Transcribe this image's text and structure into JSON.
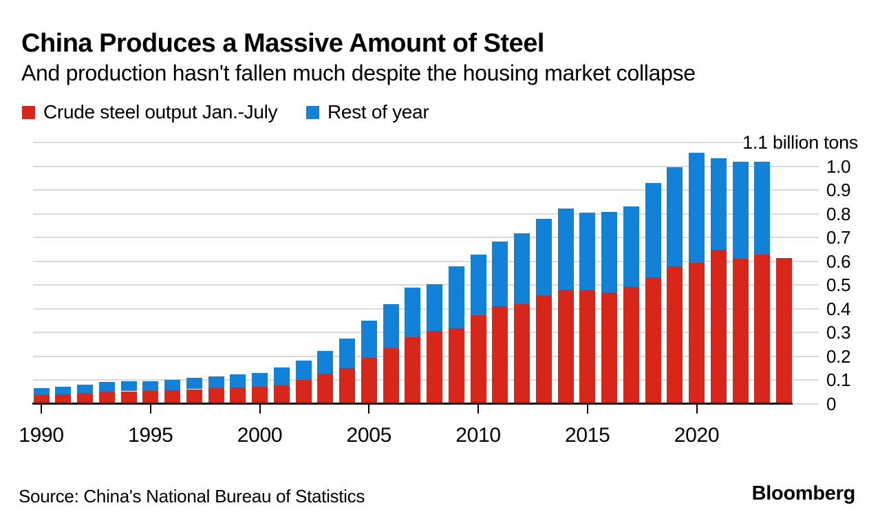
{
  "header": {
    "title": "China Produces a Massive Amount of Steel",
    "subtitle": "And production hasn't fallen much despite the housing market collapse"
  },
  "legend": {
    "items": [
      {
        "label": "Crude steel output Jan.-July",
        "color": "#d8271a"
      },
      {
        "label": "Rest of year",
        "color": "#1182d8"
      }
    ]
  },
  "footer": {
    "source": "Source: China's National Bureau of Statistics",
    "brand": "Bloomberg"
  },
  "colors": {
    "red": "#d8271a",
    "blue": "#1182d8",
    "grid": "#d9d9d9",
    "axis": "#000000",
    "text": "#000000"
  },
  "chart_data": {
    "type": "bar",
    "stacked": true,
    "title": "China Produces a Massive Amount of Steel",
    "unit": "billion tons",
    "categories": [
      1990,
      1991,
      1992,
      1993,
      1994,
      1995,
      1996,
      1997,
      1998,
      1999,
      2000,
      2001,
      2002,
      2003,
      2004,
      2005,
      2006,
      2007,
      2008,
      2009,
      2010,
      2011,
      2012,
      2013,
      2014,
      2015,
      2016,
      2017,
      2018,
      2019,
      2020,
      2021,
      2022,
      2023,
      2024
    ],
    "series": [
      {
        "name": "Crude steel output Jan.-July",
        "color": "#d8271a",
        "values": [
          0.037,
          0.04,
          0.045,
          0.051,
          0.052,
          0.054,
          0.057,
          0.061,
          0.064,
          0.069,
          0.072,
          0.078,
          0.101,
          0.125,
          0.15,
          0.194,
          0.234,
          0.281,
          0.306,
          0.317,
          0.372,
          0.41,
          0.42,
          0.457,
          0.48,
          0.476,
          0.467,
          0.492,
          0.533,
          0.577,
          0.593,
          0.649,
          0.609,
          0.627,
          0.614
        ]
      },
      {
        "name": "Rest of year",
        "color": "#1182d8",
        "values": [
          0.029,
          0.031,
          0.036,
          0.039,
          0.041,
          0.041,
          0.044,
          0.048,
          0.05,
          0.055,
          0.057,
          0.074,
          0.081,
          0.097,
          0.123,
          0.155,
          0.186,
          0.208,
          0.197,
          0.26,
          0.255,
          0.273,
          0.297,
          0.322,
          0.343,
          0.328,
          0.341,
          0.34,
          0.395,
          0.419,
          0.464,
          0.384,
          0.409,
          0.392,
          0.0
        ]
      }
    ],
    "ylim": [
      0,
      1.1
    ],
    "yticks": [
      0,
      0.1,
      0.2,
      0.3,
      0.4,
      0.5,
      0.6,
      0.7,
      0.8,
      0.9,
      1.0
    ],
    "ytick_labels": [
      "0",
      "0.1",
      "0.2",
      "0.3",
      "0.4",
      "0.5",
      "0.6",
      "0.7",
      "0.8",
      "0.9",
      "1.0"
    ],
    "top_axis_label": "1.1 billion tons",
    "xtick_years": [
      1990,
      1995,
      2000,
      2005,
      2010,
      2015,
      2020
    ],
    "grid": true,
    "legend_position": "top-left",
    "axis_side": "right"
  }
}
